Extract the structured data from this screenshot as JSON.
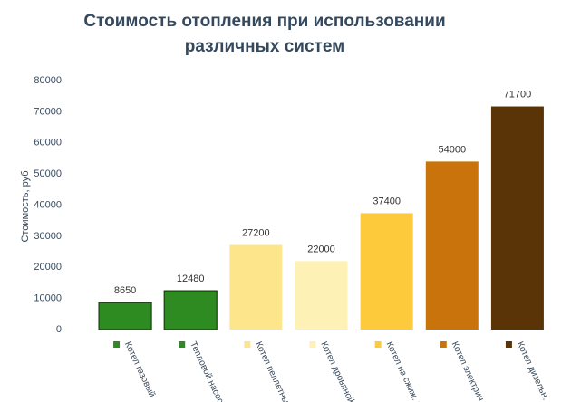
{
  "chart_data": {
    "type": "bar",
    "title_lines": [
      "Стоимость отопления при использовании",
      "различных систем"
    ],
    "y_label": "Стоимость, руб",
    "categories": [
      "Котел газовый",
      "Тепловой насос",
      "Котел пеллетный",
      "Котел дровяной",
      "Котел на сжиж. газе",
      "Котел электрич.",
      "Котел дизельн."
    ],
    "values": [
      8650,
      12480,
      27200,
      22000,
      37400,
      54000,
      71700
    ],
    "colors": [
      "#2e8b22",
      "#2e8b22",
      "#fde58c",
      "#fdf1b6",
      "#fdca3c",
      "#c9730c",
      "#5a3307"
    ],
    "category_label_colors": [
      "#333333",
      "#e03030",
      "#333333",
      "#333333",
      "#333333",
      "#333333",
      "#333333"
    ],
    "ylim": [
      0,
      80000
    ],
    "yticks": [
      0,
      10000,
      20000,
      30000,
      40000,
      50000,
      60000,
      70000,
      80000
    ],
    "grid": false
  }
}
